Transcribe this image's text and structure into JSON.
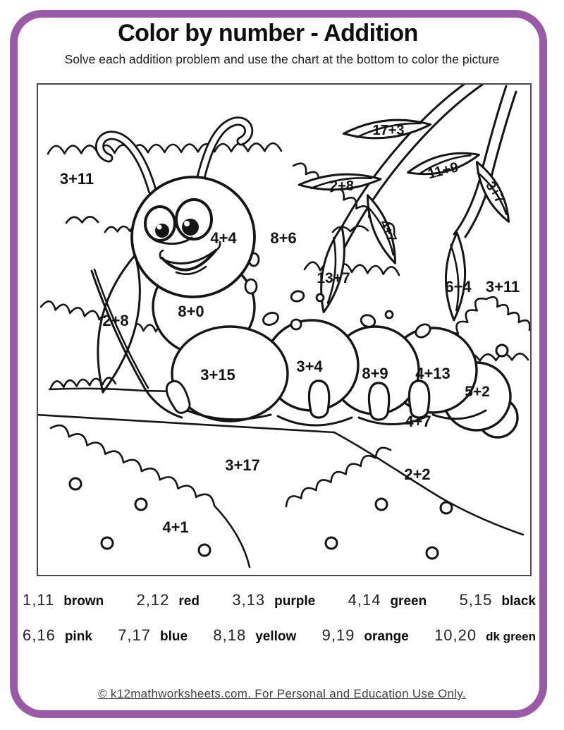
{
  "page": {
    "title": "Color by number - Addition",
    "subtitle": "Solve each addition problem and use the chart at the bottom to color the picture",
    "footer_link": "© k12mathworksheets.com. For Personal and Education Use Only.",
    "accent_color": "#9a5ba6"
  },
  "picture": {
    "problems": [
      {
        "label": "3+11"
      },
      {
        "label": "17+3"
      },
      {
        "label": "2+8"
      },
      {
        "label": "11+9"
      },
      {
        "label": "3+7"
      },
      {
        "label": "4+7"
      },
      {
        "label": "4+4"
      },
      {
        "label": "8+6"
      },
      {
        "label": "13+7"
      },
      {
        "label": "6+4"
      },
      {
        "label": "3+11"
      },
      {
        "label": "2+8"
      },
      {
        "label": "8+0"
      },
      {
        "label": "3+15"
      },
      {
        "label": "3+4"
      },
      {
        "label": "8+9"
      },
      {
        "label": "4+13"
      },
      {
        "label": "5+2"
      },
      {
        "label": "4+7"
      },
      {
        "label": "3+17"
      },
      {
        "label": "2+2"
      },
      {
        "label": "4+1"
      }
    ]
  },
  "color_key": {
    "rows": [
      [
        {
          "numbers": "1,11",
          "color": "brown"
        },
        {
          "numbers": "2,12",
          "color": "red"
        },
        {
          "numbers": "3,13",
          "color": "purple"
        },
        {
          "numbers": "4,14",
          "color": "green"
        },
        {
          "numbers": "5,15",
          "color": "black"
        }
      ],
      [
        {
          "numbers": "6,16",
          "color": "pink"
        },
        {
          "numbers": "7,17",
          "color": "blue"
        },
        {
          "numbers": "8,18",
          "color": "yellow"
        },
        {
          "numbers": "9,19",
          "color": "orange"
        },
        {
          "numbers": "10,20",
          "color": "dk green"
        }
      ]
    ]
  }
}
